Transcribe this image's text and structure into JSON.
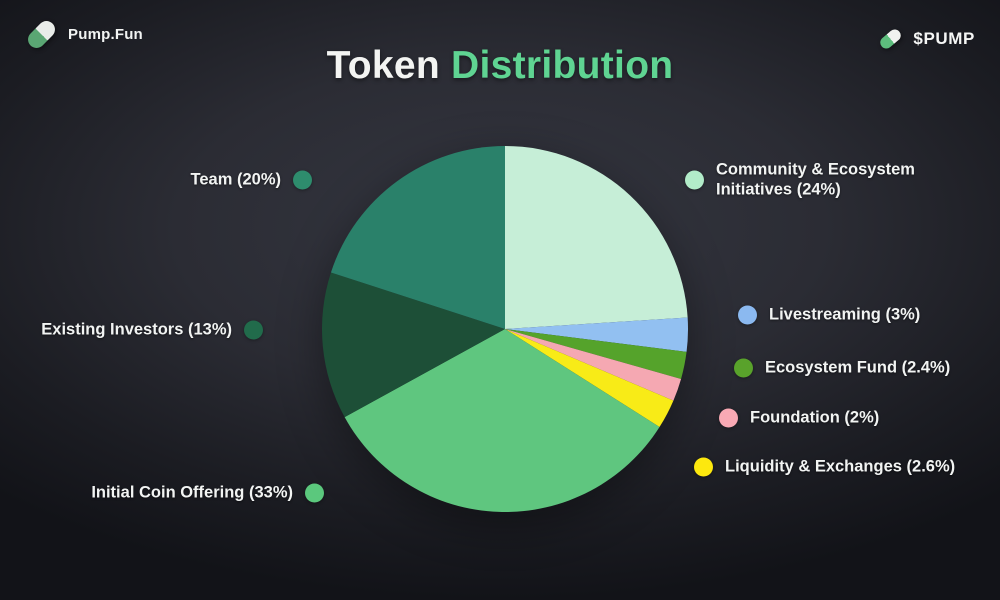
{
  "header": {
    "brand": "Pump.Fun",
    "ticker": "$PUMP",
    "title": {
      "part1": "Token",
      "part2": "Distribution"
    }
  },
  "chart_data": {
    "type": "pie",
    "title": "Token Distribution",
    "start_angle_deg": -90,
    "direction": "clockwise",
    "unit": "%",
    "slices": [
      {
        "label": "Community & Ecosystem Initiatives",
        "value": 24,
        "color": "#c6eed7"
      },
      {
        "label": "Livestreaming",
        "value": 3,
        "color": "#92c0f1"
      },
      {
        "label": "Ecosystem Fund",
        "value": 2.4,
        "color": "#55a32b"
      },
      {
        "label": "Foundation",
        "value": 2,
        "color": "#f5a8b2"
      },
      {
        "label": "Liquidity & Exchanges",
        "value": 2.6,
        "color": "#f8eb17"
      },
      {
        "label": "Initial Coin Offering",
        "value": 33,
        "color": "#5fc67f"
      },
      {
        "label": "Existing Investors",
        "value": 13,
        "color": "#1d4f37"
      },
      {
        "label": "Team",
        "value": 20,
        "color": "#2a816a"
      }
    ]
  },
  "legend": {
    "team": {
      "text": "Team (20%)",
      "color": "#2e8c6d"
    },
    "community": {
      "line1": "Community & Ecosystem",
      "line2": "Initiatives (24%)",
      "color": "#b2ecc9"
    },
    "livestreaming": {
      "text": "Livestreaming (3%)",
      "color": "#8bb9f0"
    },
    "ecosystem_fund": {
      "text": "Ecosystem Fund (2.4%)",
      "color": "#59a22b"
    },
    "foundation": {
      "text": "Foundation (2%)",
      "color": "#f9a9b4"
    },
    "liquidity": {
      "text": "Liquidity & Exchanges (2.6%)",
      "color": "#fde80e"
    },
    "ico": {
      "text": "Initial Coin Offering (33%)",
      "color": "#5bc87d"
    },
    "existing": {
      "text": "Existing Investors (13%)",
      "color": "#216b4b"
    }
  }
}
